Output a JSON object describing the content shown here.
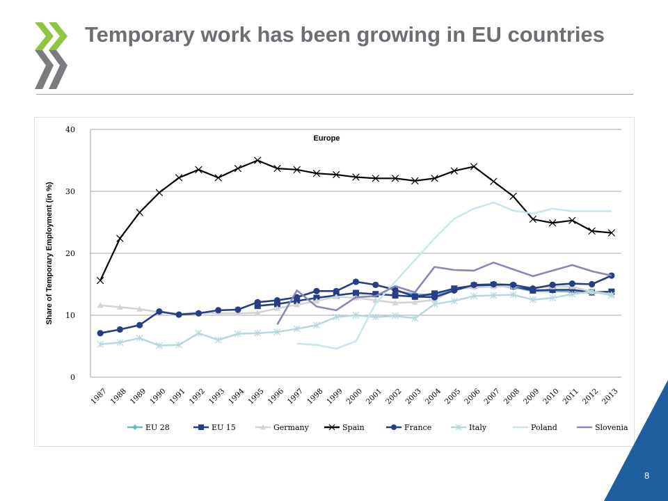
{
  "slide": {
    "title": "Temporary work has been growing in EU countries",
    "page_number": "8",
    "accent_color": "#1f5f9e",
    "logo_color_green": "#8dc63f",
    "logo_color_grey": "#6d6e71"
  },
  "chart_data": {
    "type": "line",
    "title": "Europe",
    "xlabel": "",
    "ylabel": "Share of Temporary Employment (in %)",
    "ylim": [
      0,
      40
    ],
    "yticks": [
      0,
      10,
      20,
      30,
      40
    ],
    "grid": "horizontal",
    "legend_position": "bottom",
    "x": [
      "1987",
      "1988",
      "1989",
      "1990",
      "1991",
      "1992",
      "1993",
      "1994",
      "1995",
      "1996",
      "1997",
      "1998",
      "1999",
      "2000",
      "2001",
      "2002",
      "2003",
      "2004",
      "2005",
      "2006",
      "2007",
      "2008",
      "2009",
      "2010",
      "2011",
      "2012",
      "2013"
    ],
    "series": [
      {
        "name": "EU 28",
        "color": "#6fb7c4",
        "marker": "diamond",
        "values": [
          null,
          null,
          null,
          null,
          null,
          null,
          null,
          null,
          null,
          null,
          null,
          null,
          null,
          null,
          null,
          13.9,
          13.4,
          13.2,
          14.3,
          14.7,
          14.8,
          14.5,
          13.9,
          13.9,
          13.8,
          13.6,
          13.8
        ]
      },
      {
        "name": "EU 15",
        "color": "#263e84",
        "marker": "square",
        "values": [
          null,
          null,
          null,
          null,
          null,
          null,
          null,
          null,
          11.5,
          11.8,
          12.3,
          12.8,
          13.2,
          13.6,
          13.4,
          13.2,
          13.0,
          13.5,
          14.3,
          14.8,
          14.9,
          14.7,
          14.0,
          14.1,
          14.1,
          13.7,
          13.8
        ]
      },
      {
        "name": "Germany",
        "color": "#d4d4d4",
        "marker": "triangle",
        "values": [
          11.6,
          11.3,
          11.0,
          10.5,
          10.2,
          10.5,
          10.3,
          10.3,
          10.4,
          11.1,
          11.7,
          12.3,
          13.0,
          12.8,
          12.4,
          12.0,
          12.1,
          12.5,
          14.1,
          14.5,
          14.6,
          14.7,
          14.5,
          14.6,
          14.6,
          13.8,
          13.4
        ]
      },
      {
        "name": "Spain",
        "color": "#000000",
        "marker": "x",
        "values": [
          15.6,
          22.4,
          26.6,
          29.8,
          32.2,
          33.5,
          32.2,
          33.7,
          35.0,
          33.7,
          33.5,
          32.9,
          32.7,
          32.3,
          32.1,
          32.1,
          31.7,
          32.1,
          33.3,
          34.0,
          31.6,
          29.2,
          25.5,
          24.9,
          25.3,
          23.6,
          23.3
        ]
      },
      {
        "name": "France",
        "color": "#263e84",
        "marker": "circle",
        "values": [
          7.1,
          7.7,
          8.4,
          10.6,
          10.1,
          10.3,
          10.8,
          10.9,
          12.1,
          12.4,
          12.9,
          13.9,
          13.9,
          15.4,
          14.9,
          14.1,
          13.0,
          12.9,
          14.0,
          14.9,
          15.0,
          14.9,
          14.3,
          14.9,
          15.1,
          15.0,
          16.4
        ]
      },
      {
        "name": "Italy",
        "color": "#b9d8de",
        "marker": "asterisk",
        "values": [
          5.3,
          5.6,
          6.3,
          5.1,
          5.2,
          7.1,
          6.0,
          7.0,
          7.1,
          7.3,
          7.8,
          8.4,
          9.7,
          10.0,
          9.7,
          9.9,
          9.5,
          11.8,
          12.3,
          13.1,
          13.2,
          13.3,
          12.5,
          12.8,
          13.4,
          13.8,
          13.2
        ]
      },
      {
        "name": "Poland",
        "color": "#c9e6ee",
        "marker": "none",
        "values": [
          null,
          null,
          null,
          null,
          null,
          null,
          null,
          null,
          null,
          null,
          5.4,
          5.2,
          4.6,
          5.8,
          11.9,
          15.4,
          18.9,
          22.4,
          25.6,
          27.2,
          28.2,
          26.9,
          26.4,
          27.2,
          26.8,
          26.8,
          26.8
        ]
      },
      {
        "name": "Slovenia",
        "color": "#8589b3",
        "marker": "none",
        "values": [
          null,
          null,
          null,
          null,
          null,
          null,
          null,
          null,
          null,
          8.5,
          14.0,
          11.4,
          10.8,
          12.9,
          13.1,
          14.7,
          13.7,
          17.8,
          17.3,
          17.2,
          18.5,
          17.4,
          16.3,
          17.2,
          18.1,
          17.1,
          16.4
        ]
      }
    ]
  }
}
